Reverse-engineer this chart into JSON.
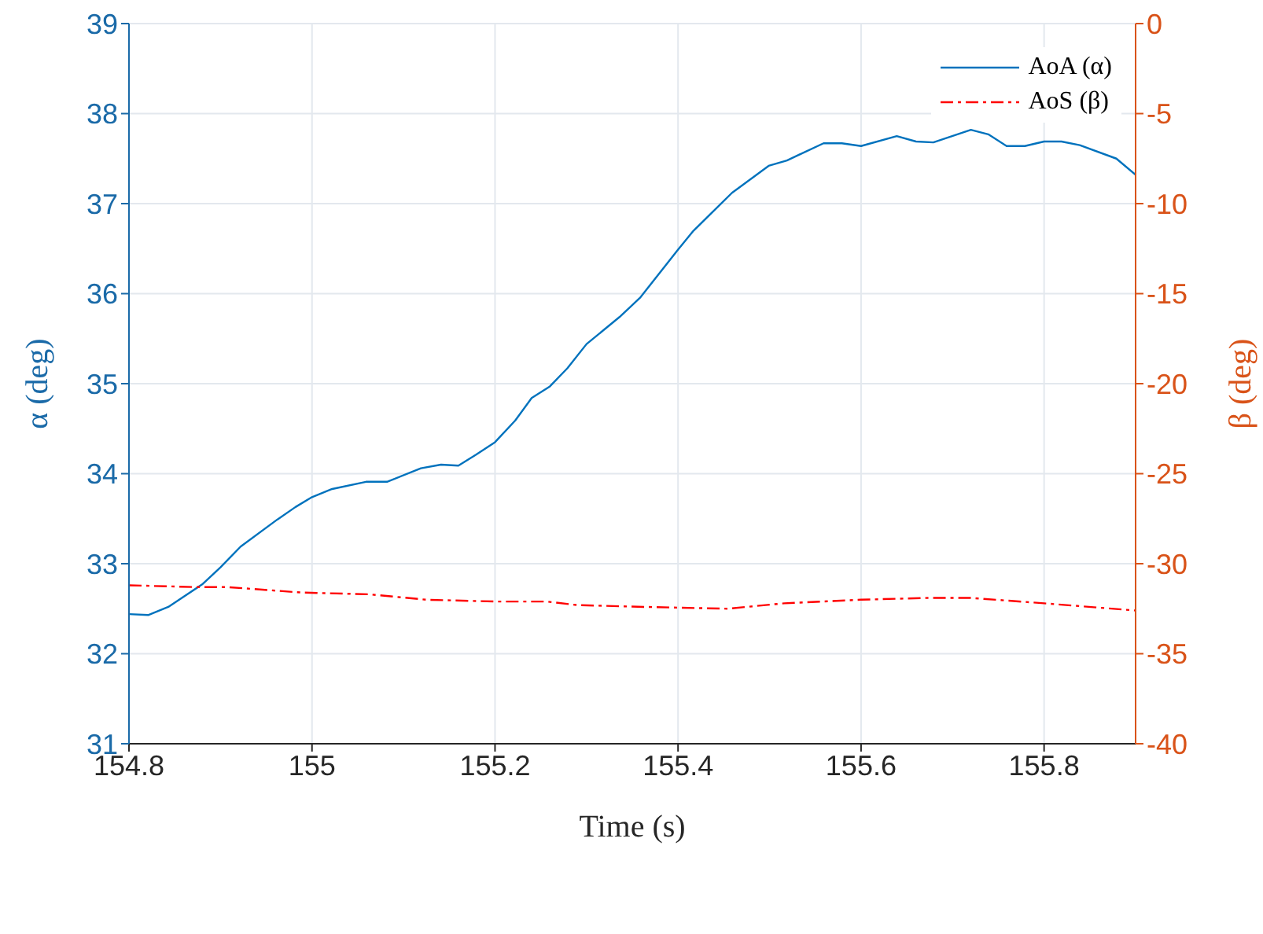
{
  "chart_data": {
    "type": "line",
    "xlabel": "Time (s)",
    "ylabel": "α (deg)",
    "y2label": "β (deg)",
    "xlim": [
      154.8,
      155.9
    ],
    "xticks": [
      154.8,
      155,
      155.2,
      155.4,
      155.6,
      155.8
    ],
    "ylim": [
      31,
      39
    ],
    "yticks": [
      31,
      32,
      33,
      34,
      35,
      36,
      37,
      38,
      39
    ],
    "y2lim": [
      -40,
      0
    ],
    "y2ticks": [
      -40,
      -35,
      -30,
      -25,
      -20,
      -15,
      -10,
      -5,
      0
    ],
    "grid": true,
    "legend": "top right",
    "series": [
      {
        "name": "AoA (α)",
        "color": "#0072bd",
        "line_style": "solid",
        "x": [
          154.8,
          154.821,
          154.843,
          154.88,
          154.9,
          154.922,
          154.962,
          154.982,
          155.0,
          155.022,
          155.059,
          155.082,
          155.119,
          155.141,
          155.16,
          155.179,
          155.2,
          155.222,
          155.24,
          155.26,
          155.279,
          155.3,
          155.336,
          155.359,
          155.4,
          155.417,
          155.459,
          155.499,
          155.519,
          155.559,
          155.579,
          155.6,
          155.639,
          155.66,
          155.679,
          155.72,
          155.739,
          155.759,
          155.779,
          155.8,
          155.819,
          155.839,
          155.879,
          155.9
        ],
        "values": [
          32.44,
          32.43,
          32.52,
          32.77,
          32.96,
          33.19,
          33.49,
          33.63,
          33.74,
          33.83,
          33.91,
          33.91,
          34.06,
          34.1,
          34.09,
          34.21,
          34.35,
          34.59,
          34.84,
          34.97,
          35.17,
          35.44,
          35.74,
          35.96,
          36.49,
          36.7,
          37.12,
          37.42,
          37.48,
          37.67,
          37.67,
          37.64,
          37.75,
          37.69,
          37.68,
          37.82,
          37.77,
          37.64,
          37.64,
          37.69,
          37.69,
          37.65,
          37.5,
          37.32
        ]
      },
      {
        "name": "AoS (β)",
        "color": "#ff0000",
        "line_style": "dashed",
        "axis": "y2",
        "x": [
          154.8,
          154.874,
          154.908,
          154.988,
          155.062,
          155.125,
          155.2,
          155.256,
          155.29,
          155.364,
          155.454,
          155.516,
          155.6,
          155.674,
          155.72,
          155.8,
          155.9
        ],
        "values": [
          -31.2,
          -31.3,
          -31.3,
          -31.6,
          -31.7,
          -32.0,
          -32.1,
          -32.1,
          -32.3,
          -32.4,
          -32.5,
          -32.2,
          -32.0,
          -31.9,
          -31.9,
          -32.2,
          -32.6
        ]
      }
    ]
  }
}
